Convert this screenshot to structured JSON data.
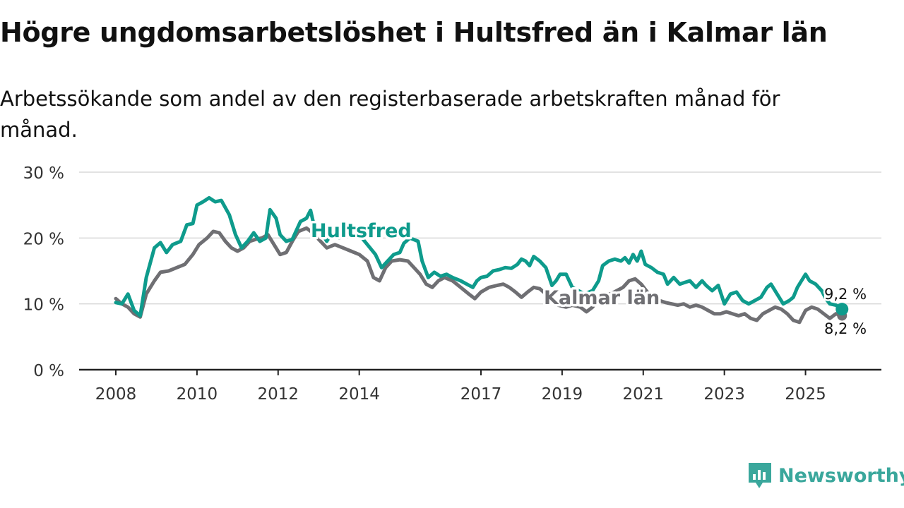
{
  "header": {
    "title": "Högre ungdomsarbetslöshet i Hultsfred än i Kalmar län",
    "subtitle": "Arbetssökande som andel av den registerbaserade arbetskraften månad för månad."
  },
  "brand": {
    "name": "Newsworthy"
  },
  "colors": {
    "hultsfred": "#0e9b8c",
    "kalmar": "#6f6f73",
    "grid": "#d9d9d9",
    "axis": "#222222"
  },
  "chart_data": {
    "type": "line",
    "title": "Högre ungdomsarbetslöshet i Hultsfred än i Kalmar län",
    "xlabel": "",
    "ylabel": "",
    "xlim": [
      2008.0,
      2026.0
    ],
    "ylim": [
      0,
      30
    ],
    "y_ticks": [
      0,
      10,
      20,
      30
    ],
    "y_tick_labels": [
      "0 %",
      "10 %",
      "20 %",
      "30 %"
    ],
    "x_ticks": [
      2008,
      2010,
      2012,
      2014,
      2017,
      2019,
      2021,
      2023,
      2025
    ],
    "x_tick_labels": [
      "2008",
      "2010",
      "2012",
      "2014",
      "2017",
      "2019",
      "2021",
      "2023",
      "2025"
    ],
    "grid": true,
    "series": [
      {
        "name": "Hultsfred",
        "label": "Hultsfred",
        "end_label": "9,2 %",
        "color": "#0e9b8c",
        "points": [
          [
            2008.0,
            10.2
          ],
          [
            2008.15,
            10.0
          ],
          [
            2008.3,
            11.5
          ],
          [
            2008.45,
            9.0
          ],
          [
            2008.6,
            8.2
          ],
          [
            2008.75,
            14.0
          ],
          [
            2008.95,
            18.5
          ],
          [
            2009.1,
            19.3
          ],
          [
            2009.25,
            17.8
          ],
          [
            2009.4,
            19.0
          ],
          [
            2009.6,
            19.5
          ],
          [
            2009.75,
            22.0
          ],
          [
            2009.9,
            22.2
          ],
          [
            2010.0,
            25.0
          ],
          [
            2010.15,
            25.5
          ],
          [
            2010.3,
            26.1
          ],
          [
            2010.45,
            25.5
          ],
          [
            2010.6,
            25.7
          ],
          [
            2010.8,
            23.5
          ],
          [
            2010.95,
            20.5
          ],
          [
            2011.1,
            18.5
          ],
          [
            2011.25,
            19.5
          ],
          [
            2011.4,
            20.8
          ],
          [
            2011.55,
            19.5
          ],
          [
            2011.7,
            20.0
          ],
          [
            2011.8,
            24.3
          ],
          [
            2011.95,
            23.0
          ],
          [
            2012.05,
            20.5
          ],
          [
            2012.2,
            19.5
          ],
          [
            2012.35,
            19.8
          ],
          [
            2012.55,
            22.5
          ],
          [
            2012.7,
            23.0
          ],
          [
            2012.8,
            24.2
          ],
          [
            2012.9,
            21.5
          ],
          [
            2013.05,
            21.0
          ],
          [
            2013.2,
            19.5
          ],
          [
            2013.35,
            21.0
          ],
          [
            2013.5,
            20.0
          ],
          [
            2013.65,
            20.5
          ],
          [
            2014.0,
            20.5
          ],
          [
            2014.2,
            19.0
          ],
          [
            2014.4,
            17.5
          ],
          [
            2014.55,
            15.5
          ],
          [
            2014.7,
            16.5
          ],
          [
            2014.85,
            17.5
          ],
          [
            2015.0,
            17.8
          ],
          [
            2015.1,
            19.2
          ],
          [
            2015.25,
            20.0
          ],
          [
            2015.45,
            19.5
          ],
          [
            2015.55,
            16.5
          ],
          [
            2015.7,
            14.0
          ],
          [
            2015.85,
            14.8
          ],
          [
            2016.0,
            14.2
          ],
          [
            2016.15,
            14.5
          ],
          [
            2016.3,
            14.0
          ],
          [
            2016.5,
            13.5
          ],
          [
            2016.65,
            13.0
          ],
          [
            2016.8,
            12.5
          ],
          [
            2016.9,
            13.5
          ],
          [
            2017.0,
            14.0
          ],
          [
            2017.15,
            14.2
          ],
          [
            2017.3,
            15.0
          ],
          [
            2017.45,
            15.2
          ],
          [
            2017.6,
            15.5
          ],
          [
            2017.75,
            15.4
          ],
          [
            2017.9,
            16.0
          ],
          [
            2018.0,
            16.8
          ],
          [
            2018.1,
            16.5
          ],
          [
            2018.2,
            15.8
          ],
          [
            2018.3,
            17.2
          ],
          [
            2018.45,
            16.5
          ],
          [
            2018.6,
            15.5
          ],
          [
            2018.75,
            12.8
          ],
          [
            2018.85,
            13.5
          ],
          [
            2018.95,
            14.5
          ],
          [
            2019.1,
            14.5
          ],
          [
            2019.25,
            12.5
          ],
          [
            2019.4,
            12.0
          ],
          [
            2019.55,
            11.5
          ],
          [
            2019.75,
            12.0
          ],
          [
            2019.9,
            13.5
          ],
          [
            2020.0,
            15.8
          ],
          [
            2020.15,
            16.5
          ],
          [
            2020.3,
            16.8
          ],
          [
            2020.45,
            16.5
          ],
          [
            2020.55,
            17.0
          ],
          [
            2020.65,
            16.2
          ],
          [
            2020.75,
            17.5
          ],
          [
            2020.85,
            16.5
          ],
          [
            2020.95,
            18.0
          ],
          [
            2021.05,
            16.0
          ],
          [
            2021.2,
            15.5
          ],
          [
            2021.35,
            14.8
          ],
          [
            2021.5,
            14.5
          ],
          [
            2021.6,
            13.0
          ],
          [
            2021.75,
            14.0
          ],
          [
            2021.9,
            13.0
          ],
          [
            2022.0,
            13.2
          ],
          [
            2022.15,
            13.5
          ],
          [
            2022.3,
            12.5
          ],
          [
            2022.45,
            13.5
          ],
          [
            2022.55,
            12.8
          ],
          [
            2022.7,
            12.0
          ],
          [
            2022.85,
            12.8
          ],
          [
            2023.0,
            10.0
          ],
          [
            2023.15,
            11.5
          ],
          [
            2023.3,
            11.8
          ],
          [
            2023.45,
            10.5
          ],
          [
            2023.6,
            10.0
          ],
          [
            2023.75,
            10.5
          ],
          [
            2023.9,
            11.0
          ],
          [
            2024.05,
            12.5
          ],
          [
            2024.15,
            13.0
          ],
          [
            2024.3,
            11.5
          ],
          [
            2024.45,
            10.0
          ],
          [
            2024.6,
            10.5
          ],
          [
            2024.7,
            11.0
          ],
          [
            2024.8,
            12.5
          ],
          [
            2024.9,
            13.5
          ],
          [
            2025.0,
            14.5
          ],
          [
            2025.1,
            13.5
          ],
          [
            2025.25,
            13.0
          ],
          [
            2025.4,
            12.0
          ],
          [
            2025.5,
            10.8
          ],
          [
            2025.6,
            10.0
          ],
          [
            2025.75,
            9.8
          ],
          [
            2025.9,
            9.2
          ]
        ]
      },
      {
        "name": "Kalmar län",
        "label": "Kalmar län",
        "end_label": "8,2 %",
        "color": "#6f6f73",
        "points": [
          [
            2008.0,
            10.8
          ],
          [
            2008.15,
            10.0
          ],
          [
            2008.3,
            9.5
          ],
          [
            2008.45,
            8.5
          ],
          [
            2008.6,
            8.0
          ],
          [
            2008.75,
            11.5
          ],
          [
            2008.95,
            13.5
          ],
          [
            2009.1,
            14.8
          ],
          [
            2009.3,
            15.0
          ],
          [
            2009.5,
            15.5
          ],
          [
            2009.7,
            16.0
          ],
          [
            2009.9,
            17.5
          ],
          [
            2010.05,
            19.0
          ],
          [
            2010.25,
            20.0
          ],
          [
            2010.4,
            21.0
          ],
          [
            2010.55,
            20.8
          ],
          [
            2010.7,
            19.5
          ],
          [
            2010.85,
            18.5
          ],
          [
            2011.0,
            18.0
          ],
          [
            2011.15,
            18.5
          ],
          [
            2011.3,
            19.5
          ],
          [
            2011.45,
            19.8
          ],
          [
            2011.6,
            20.0
          ],
          [
            2011.75,
            20.5
          ],
          [
            2011.9,
            19.0
          ],
          [
            2012.05,
            17.5
          ],
          [
            2012.2,
            17.8
          ],
          [
            2012.35,
            19.5
          ],
          [
            2012.5,
            21.0
          ],
          [
            2012.7,
            21.5
          ],
          [
            2012.85,
            20.8
          ],
          [
            2013.0,
            19.8
          ],
          [
            2013.2,
            18.5
          ],
          [
            2013.4,
            19.0
          ],
          [
            2013.6,
            18.5
          ],
          [
            2013.8,
            18.0
          ],
          [
            2014.0,
            17.5
          ],
          [
            2014.2,
            16.5
          ],
          [
            2014.35,
            14.0
          ],
          [
            2014.5,
            13.5
          ],
          [
            2014.65,
            15.5
          ],
          [
            2014.8,
            16.5
          ],
          [
            2015.0,
            16.7
          ],
          [
            2015.2,
            16.5
          ],
          [
            2015.35,
            15.5
          ],
          [
            2015.5,
            14.5
          ],
          [
            2015.65,
            13.0
          ],
          [
            2015.8,
            12.5
          ],
          [
            2015.95,
            13.5
          ],
          [
            2016.1,
            14.0
          ],
          [
            2016.3,
            13.5
          ],
          [
            2016.5,
            12.5
          ],
          [
            2016.7,
            11.5
          ],
          [
            2016.85,
            10.8
          ],
          [
            2017.0,
            11.8
          ],
          [
            2017.2,
            12.5
          ],
          [
            2017.4,
            12.8
          ],
          [
            2017.55,
            13.0
          ],
          [
            2017.7,
            12.5
          ],
          [
            2017.85,
            11.8
          ],
          [
            2018.0,
            11.0
          ],
          [
            2018.15,
            11.8
          ],
          [
            2018.3,
            12.5
          ],
          [
            2018.45,
            12.3
          ],
          [
            2018.6,
            11.5
          ],
          [
            2018.75,
            10.5
          ],
          [
            2018.9,
            9.8
          ],
          [
            2019.1,
            9.5
          ],
          [
            2019.25,
            9.8
          ],
          [
            2019.45,
            9.5
          ],
          [
            2019.6,
            8.8
          ],
          [
            2019.75,
            9.5
          ],
          [
            2019.9,
            10.8
          ],
          [
            2020.05,
            11.5
          ],
          [
            2020.2,
            11.5
          ],
          [
            2020.35,
            12.0
          ],
          [
            2020.5,
            12.5
          ],
          [
            2020.65,
            13.5
          ],
          [
            2020.8,
            13.8
          ],
          [
            2020.95,
            13.0
          ],
          [
            2021.1,
            11.8
          ],
          [
            2021.25,
            11.0
          ],
          [
            2021.4,
            10.5
          ],
          [
            2021.55,
            10.2
          ],
          [
            2021.7,
            10.0
          ],
          [
            2021.85,
            9.8
          ],
          [
            2022.0,
            10.0
          ],
          [
            2022.15,
            9.5
          ],
          [
            2022.3,
            9.8
          ],
          [
            2022.45,
            9.5
          ],
          [
            2022.6,
            9.0
          ],
          [
            2022.75,
            8.5
          ],
          [
            2022.9,
            8.5
          ],
          [
            2023.05,
            8.8
          ],
          [
            2023.2,
            8.5
          ],
          [
            2023.35,
            8.2
          ],
          [
            2023.5,
            8.5
          ],
          [
            2023.65,
            7.8
          ],
          [
            2023.8,
            7.5
          ],
          [
            2023.95,
            8.5
          ],
          [
            2024.1,
            9.0
          ],
          [
            2024.25,
            9.5
          ],
          [
            2024.4,
            9.2
          ],
          [
            2024.55,
            8.5
          ],
          [
            2024.7,
            7.5
          ],
          [
            2024.85,
            7.2
          ],
          [
            2025.0,
            9.0
          ],
          [
            2025.15,
            9.5
          ],
          [
            2025.3,
            9.2
          ],
          [
            2025.45,
            8.5
          ],
          [
            2025.6,
            7.8
          ],
          [
            2025.75,
            8.5
          ],
          [
            2025.9,
            8.2
          ]
        ]
      }
    ]
  }
}
